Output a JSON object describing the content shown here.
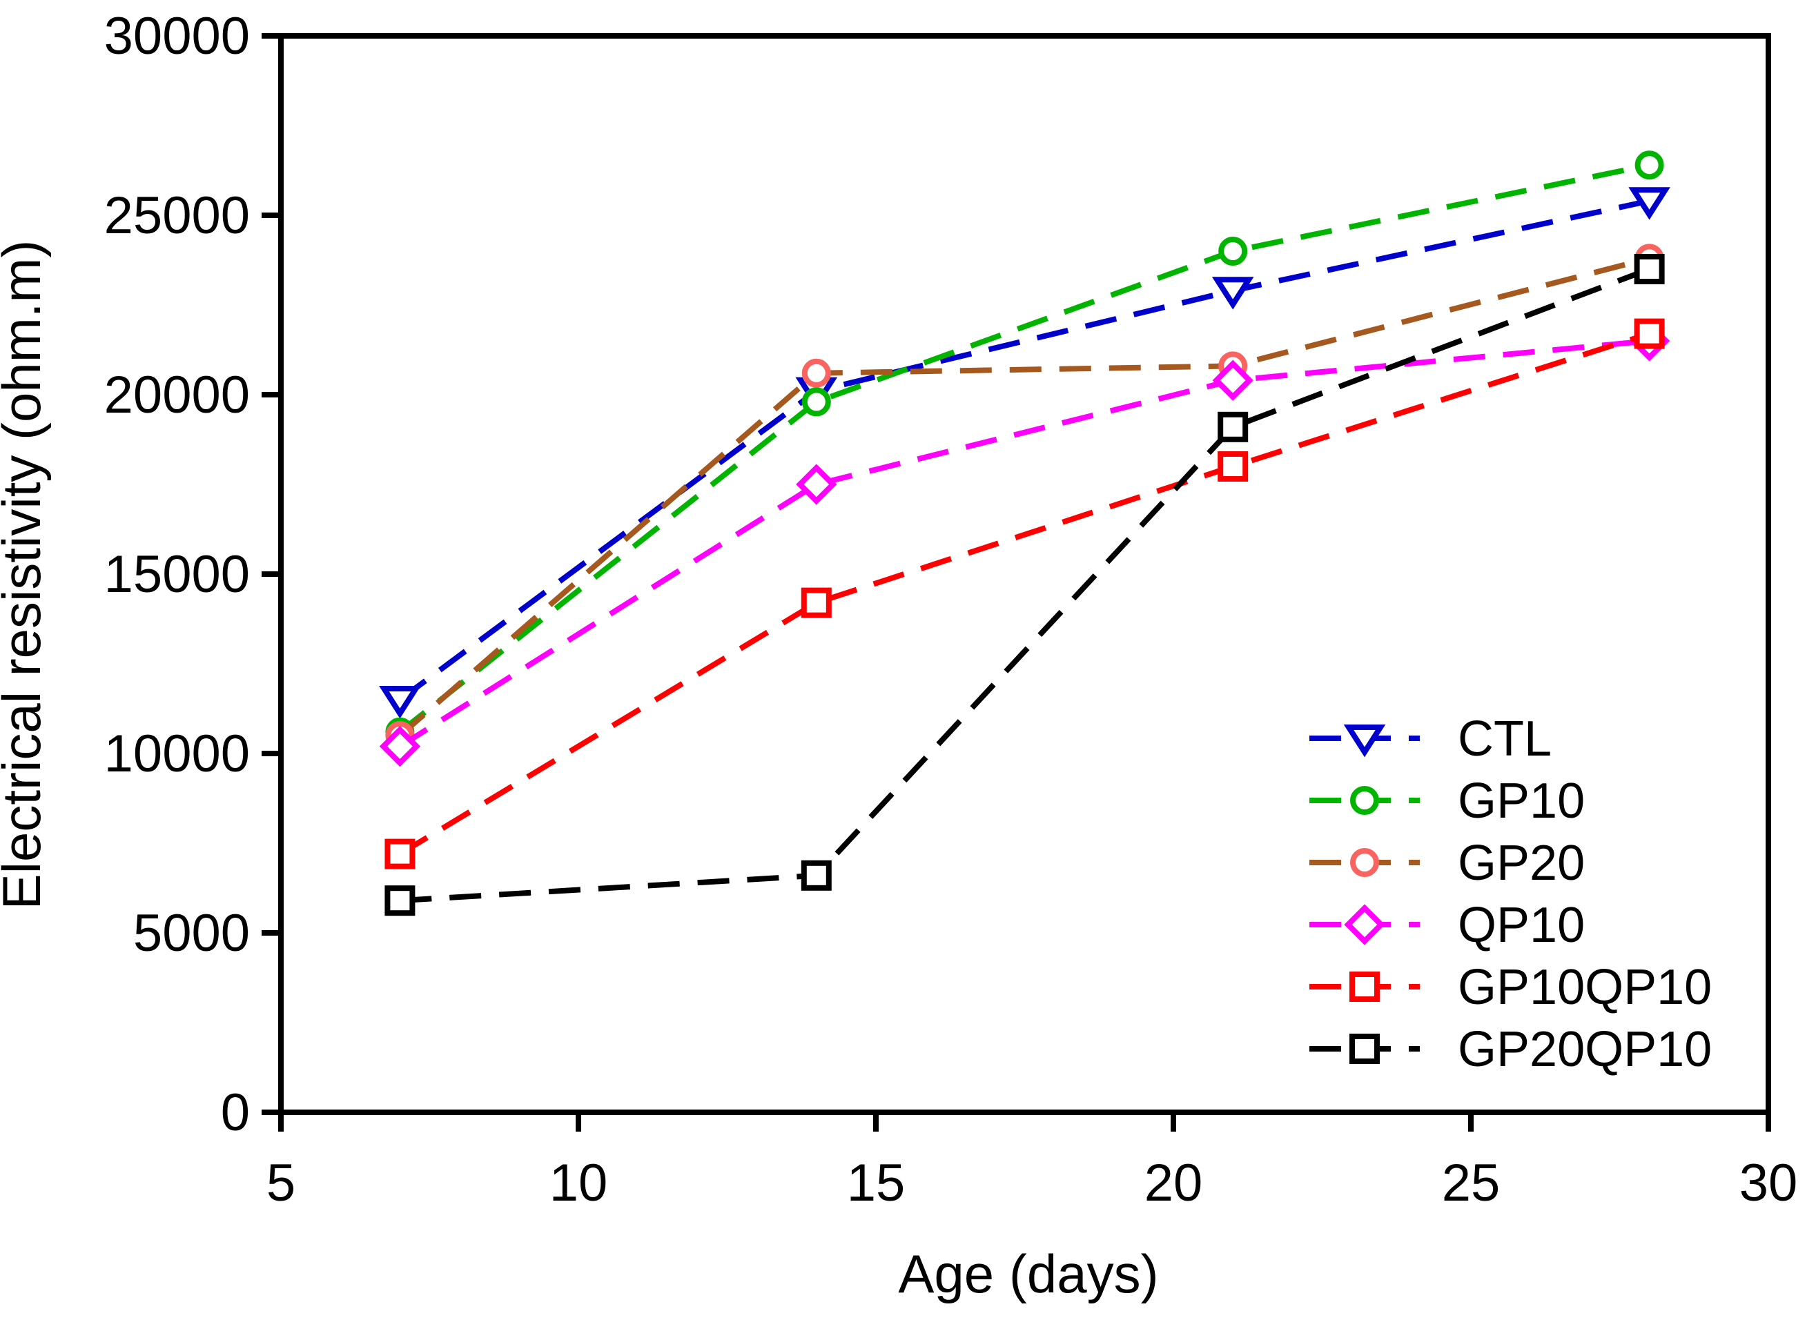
{
  "figure": {
    "background": "#ffffff",
    "text_color": "#000000"
  },
  "chart_data": {
    "type": "line",
    "title": "",
    "xlabel": "Age (days)",
    "ylabel": "Electrical resistivity (ohm.m)",
    "x": [
      7,
      14,
      21,
      28
    ],
    "xlim": [
      5,
      30
    ],
    "ylim": [
      0,
      30000
    ],
    "xticks": [
      5,
      10,
      15,
      20,
      25,
      30
    ],
    "yticks": [
      0,
      5000,
      10000,
      15000,
      20000,
      25000,
      30000
    ],
    "grid": false,
    "frame": "full-box",
    "line_style": "dashed",
    "legend_position": "inside-lower-right",
    "series": [
      {
        "name": "CTL",
        "color": "#0000cd",
        "marker": "triangle-down",
        "marker_color": "#0000cd",
        "values": [
          11500,
          20100,
          22900,
          25400
        ]
      },
      {
        "name": "GP10",
        "color": "#00b400",
        "marker": "circle",
        "marker_color": "#00b400",
        "values": [
          10600,
          19800,
          24000,
          26400
        ]
      },
      {
        "name": "GP20",
        "color": "#a5591e",
        "marker": "circle",
        "marker_color": "#fa6460",
        "values": [
          10500,
          20600,
          20800,
          23800
        ]
      },
      {
        "name": "QP10",
        "color": "#ff00ff",
        "marker": "diamond",
        "marker_color": "#ff00ff",
        "values": [
          10200,
          17500,
          20400,
          21500
        ]
      },
      {
        "name": "GP10QP10",
        "color": "#ff0000",
        "marker": "square",
        "marker_color": "#ff0000",
        "values": [
          7200,
          14200,
          18000,
          21700
        ]
      },
      {
        "name": "GP20QP10",
        "color": "#000000",
        "marker": "square",
        "marker_color": "#000000",
        "values": [
          5900,
          6600,
          19100,
          23500
        ]
      }
    ]
  }
}
